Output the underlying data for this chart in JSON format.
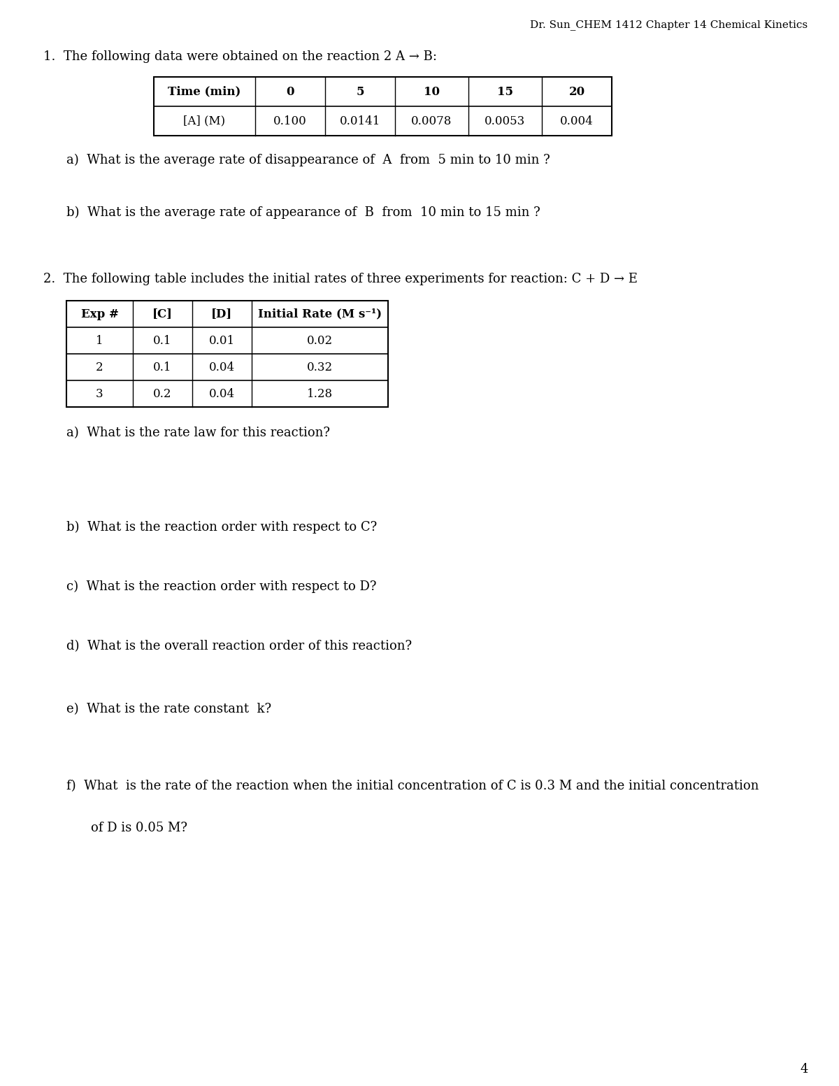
{
  "header": "Dr. Sun_CHEM 1412 Chapter 14 Chemical Kinetics",
  "page_number": "4",
  "background_color": "#ffffff",
  "text_color": "#000000",
  "q1_intro": "1.  The following data were obtained on the reaction 2 A → B:",
  "table1_headers": [
    "Time (min)",
    "0",
    "5",
    "10",
    "15",
    "20"
  ],
  "table1_row": [
    "[A] (M)",
    "0.100",
    "0.0141",
    "0.0078",
    "0.0053",
    "0.004"
  ],
  "q2_intro": "2.  The following table includes the initial rates of three experiments for reaction: C + D → E",
  "table2_headers": [
    "Exp #",
    "[C]",
    "[D]",
    "Initial Rate (M s⁻¹)"
  ],
  "table2_rows": [
    [
      "1",
      "0.1",
      "0.01",
      "0.02"
    ],
    [
      "2",
      "0.1",
      "0.04",
      "0.32"
    ],
    [
      "3",
      "0.2",
      "0.04",
      "1.28"
    ]
  ],
  "q1a_pre": "a)  What is the average rate of disappearance of ",
  "q1a_bold": "A",
  "q1a_post": " from ",
  "q1a_italic": "5 min to 10 min",
  "q1a_end": "?",
  "q1b_pre": "b)  What is the average rate of appearance of ",
  "q1b_bold": "B",
  "q1b_post": " from ",
  "q1b_italic": "10 min to 15 min",
  "q1b_end": "?",
  "q2a": "a)  What is the rate law for this reaction?",
  "q2b": "b)  What is the reaction order with respect to C?",
  "q2c": "c)  What is the reaction order with respect to D?",
  "q2d": "d)  What is the overall reaction order of this reaction?",
  "q2e_pre": "e)  What is the rate constant ",
  "q2e_italic": "k",
  "q2e_end": "?",
  "q2f_line1": "f)  What  is the rate of the reaction when the initial concentration of C is 0.3 M and the initial concentration",
  "q2f_line2": "     of D is 0.05 M?"
}
